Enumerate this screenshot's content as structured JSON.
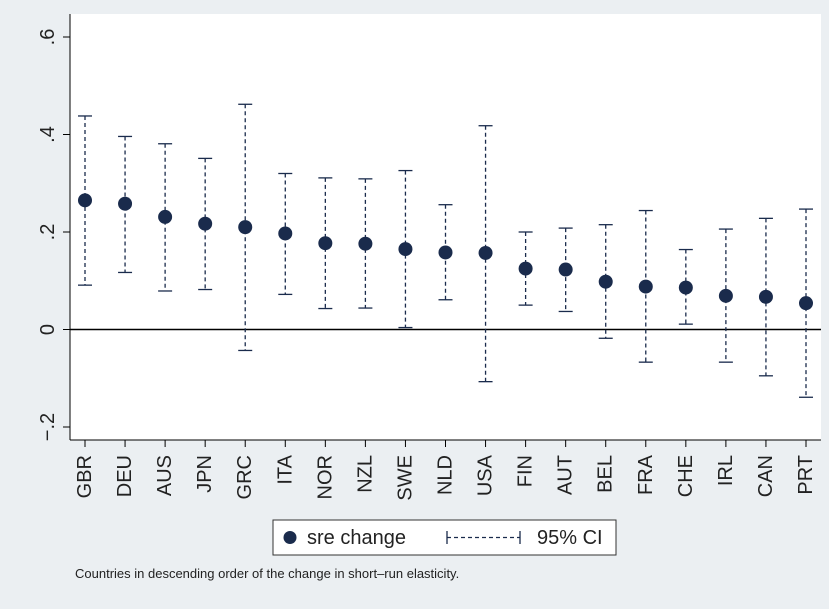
{
  "chart_data": {
    "type": "scatter",
    "subtype": "point-with-confidence-interval",
    "title": "",
    "xlabel": "",
    "ylabel": "",
    "ylim": [
      -0.2,
      0.6
    ],
    "yticks": [
      -0.2,
      0,
      0.2,
      0.4,
      0.6
    ],
    "ytick_labels": [
      "−.2",
      "0",
      ".2",
      ".4",
      ".6"
    ],
    "reference_line": 0,
    "grid": false,
    "categories": [
      "GBR",
      "DEU",
      "AUS",
      "JPN",
      "GRC",
      "ITA",
      "NOR",
      "NZL",
      "SWE",
      "NLD",
      "USA",
      "FIN",
      "AUT",
      "BEL",
      "FRA",
      "CHE",
      "IRL",
      "CAN",
      "PRT"
    ],
    "series": [
      {
        "name": "sre change",
        "values": [
          0.265,
          0.258,
          0.231,
          0.217,
          0.21,
          0.197,
          0.177,
          0.176,
          0.165,
          0.158,
          0.157,
          0.125,
          0.123,
          0.098,
          0.088,
          0.086,
          0.069,
          0.067,
          0.054
        ]
      },
      {
        "name": "95% CI",
        "lower": [
          0.091,
          0.117,
          0.079,
          0.082,
          -0.043,
          0.072,
          0.043,
          0.044,
          0.004,
          0.061,
          -0.107,
          0.05,
          0.037,
          -0.018,
          -0.067,
          0.011,
          -0.067,
          -0.095,
          -0.139
        ],
        "upper": [
          0.438,
          0.396,
          0.381,
          0.351,
          0.462,
          0.32,
          0.311,
          0.309,
          0.326,
          0.256,
          0.418,
          0.2,
          0.208,
          0.215,
          0.244,
          0.164,
          0.206,
          0.228,
          0.247
        ]
      }
    ],
    "legend": {
      "position": "bottom-center",
      "point_label": "sre change",
      "ci_label": "95% CI"
    },
    "note": "Countries in descending order of the change in short–run elasticity.",
    "colors": {
      "background": "#ebeff2",
      "plot_background": "#ffffff",
      "marker": "#1a2b4c",
      "ci": "#1a2b4c",
      "axis": "#000000"
    }
  }
}
